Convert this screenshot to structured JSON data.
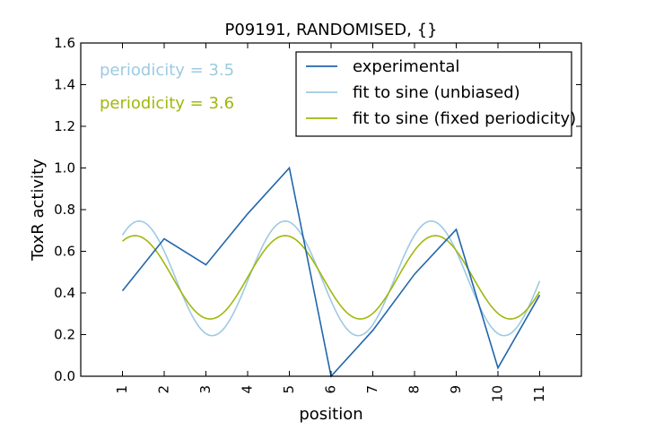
{
  "chart_data": {
    "type": "line",
    "title": "P09191, RANDOMISED, {}",
    "xlabel": "position",
    "ylabel": "ToxR activity",
    "xlim": [
      0,
      12
    ],
    "ylim": [
      0.0,
      1.6
    ],
    "x_ticks": [
      1,
      2,
      3,
      4,
      5,
      6,
      7,
      8,
      9,
      10,
      11
    ],
    "x_tick_labels": [
      "1",
      "2",
      "3",
      "4",
      "5",
      "6",
      "7",
      "8",
      "9",
      "10",
      "11"
    ],
    "y_ticks": [
      0.0,
      0.2,
      0.4,
      0.6,
      0.8,
      1.0,
      1.2,
      1.4,
      1.6
    ],
    "y_tick_labels": [
      "0.0",
      "0.2",
      "0.4",
      "0.6",
      "0.8",
      "1.0",
      "1.2",
      "1.4",
      "1.6"
    ],
    "grid": false,
    "legend_position": "top-right",
    "series": [
      {
        "name": "experimental",
        "kind": "data",
        "color": "#2166ac",
        "x": [
          1,
          2,
          3,
          4,
          5,
          6,
          7,
          8,
          9,
          10,
          11
        ],
        "values": [
          0.41,
          0.66,
          0.535,
          0.78,
          1.0,
          0.0,
          0.22,
          0.49,
          0.705,
          0.04,
          0.39
        ]
      },
      {
        "name": "fit to sine (unbiased)",
        "kind": "sine",
        "color": "#9ecae1",
        "periodicity": 3.5,
        "mean": 0.47,
        "amplitude": 0.275,
        "peak_x": 1.4,
        "x_range": [
          1,
          11
        ]
      },
      {
        "name": "fit to sine (fixed periodicity)",
        "kind": "sine",
        "color": "#a1b70d",
        "periodicity": 3.6,
        "mean": 0.475,
        "amplitude": 0.2,
        "peak_x": 1.3,
        "x_range": [
          1,
          11
        ]
      }
    ],
    "annotations": [
      {
        "text": "periodicity = 3.5",
        "color": "#9ecae1"
      },
      {
        "text": "periodicity = 3.6",
        "color": "#a1b70d"
      }
    ]
  }
}
